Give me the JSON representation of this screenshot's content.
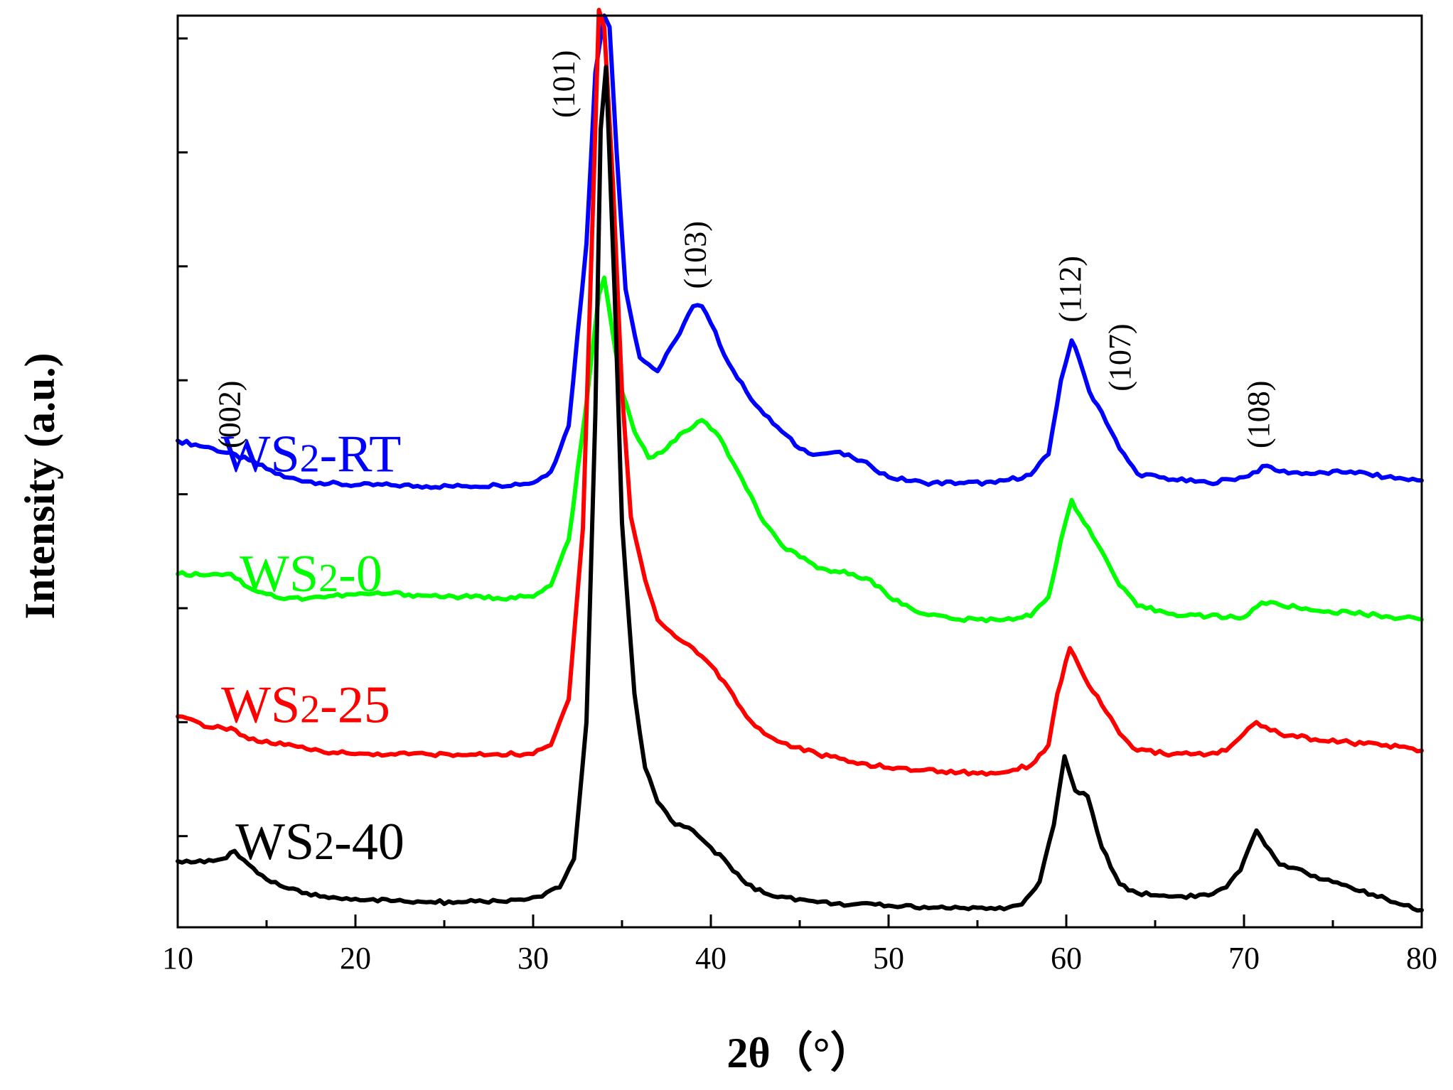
{
  "chart_data": {
    "type": "line",
    "xlabel": "2θ（°）",
    "ylabel": "Intensity (a.u.)",
    "xlim": [
      10,
      80
    ],
    "ylim": [
      0,
      8
    ],
    "xticks": [
      10,
      20,
      30,
      40,
      50,
      60,
      70,
      80
    ],
    "xtick_labels": [
      "10",
      "20",
      "30",
      "40",
      "50",
      "60",
      "70",
      "80"
    ],
    "yticks_unlabeled": [
      0.8,
      1.8,
      2.8,
      3.8,
      4.8,
      5.8,
      6.8,
      7.8
    ],
    "peak_labels": [
      {
        "text": "(002)",
        "x": 13.5,
        "y": 4.5
      },
      {
        "text": "(101)",
        "x": 32.3,
        "y": 7.4
      },
      {
        "text": "(103)",
        "x": 39.7,
        "y": 5.9
      },
      {
        "text": "(112)",
        "x": 60.8,
        "y": 5.6
      },
      {
        "text": "(107)",
        "x": 63.6,
        "y": 5.0
      },
      {
        "text": "(108)",
        "x": 71.4,
        "y": 4.5
      }
    ],
    "series": [
      {
        "name": "WS2-RT",
        "label_base": "WS",
        "label_sub": "2",
        "label_suffix": "-RT",
        "label_pos": [
          17.5,
          4.0
        ],
        "color": "#0000ff",
        "x": [
          10,
          12,
          14,
          16,
          18,
          20,
          22,
          24,
          26,
          28,
          30,
          31,
          32,
          33,
          33.5,
          34.0,
          34.3,
          34.7,
          35.2,
          36,
          37,
          38,
          39,
          39.5,
          40,
          41,
          42,
          43,
          44,
          45,
          46,
          47,
          48,
          49,
          50,
          52,
          54,
          56,
          58,
          59,
          59.7,
          60.3,
          60.7,
          61.3,
          62,
          63,
          64,
          66,
          68,
          70,
          71.3,
          72,
          74,
          76,
          78,
          80
        ],
        "y": [
          4.27,
          4.2,
          4.1,
          3.95,
          3.9,
          3.88,
          3.88,
          3.87,
          3.87,
          3.88,
          3.9,
          4.0,
          4.4,
          6.0,
          7.5,
          8.0,
          7.9,
          6.8,
          5.6,
          5.0,
          4.88,
          5.15,
          5.45,
          5.45,
          5.3,
          4.95,
          4.7,
          4.5,
          4.35,
          4.2,
          4.15,
          4.17,
          4.12,
          4.05,
          3.95,
          3.9,
          3.9,
          3.9,
          3.97,
          4.15,
          4.8,
          5.15,
          5.0,
          4.7,
          4.52,
          4.2,
          3.98,
          3.93,
          3.9,
          3.95,
          4.05,
          4.0,
          3.98,
          4.0,
          3.95,
          3.92
        ]
      },
      {
        "name": "WS2-0",
        "label_base": "WS",
        "label_sub": "2",
        "label_suffix": "-0",
        "label_pos": [
          17.5,
          2.95
        ],
        "color": "#00ff00",
        "x": [
          10,
          12,
          13,
          14,
          16,
          18,
          20,
          22,
          24,
          26,
          28,
          30,
          31,
          32,
          33,
          33.7,
          34.0,
          34.3,
          35,
          35.7,
          36.5,
          37.5,
          38.5,
          39.5,
          40.5,
          42,
          43,
          44,
          45,
          46,
          48,
          49,
          50,
          52,
          54,
          56,
          58,
          59,
          59.7,
          60.3,
          61,
          62,
          63,
          64,
          66,
          68,
          70,
          71,
          72,
          74,
          76,
          78,
          80
        ],
        "y": [
          3.1,
          3.1,
          3.1,
          2.98,
          2.88,
          2.9,
          2.92,
          2.93,
          2.91,
          2.9,
          2.89,
          2.9,
          3.0,
          3.4,
          4.6,
          5.55,
          5.7,
          5.4,
          4.7,
          4.35,
          4.12,
          4.2,
          4.35,
          4.45,
          4.3,
          3.85,
          3.55,
          3.35,
          3.25,
          3.15,
          3.1,
          3.05,
          2.9,
          2.75,
          2.7,
          2.7,
          2.73,
          2.9,
          3.4,
          3.75,
          3.55,
          3.3,
          3.0,
          2.82,
          2.75,
          2.73,
          2.72,
          2.85,
          2.83,
          2.78,
          2.76,
          2.73,
          2.7
        ]
      },
      {
        "name": "WS2-25",
        "label_base": "WS",
        "label_sub": "2",
        "label_suffix": "-25",
        "label_pos": [
          17.2,
          1.8
        ],
        "color": "#ff0000",
        "x": [
          10,
          12,
          13,
          14,
          16,
          18,
          20,
          22,
          24,
          26,
          28,
          30,
          31,
          32,
          32.8,
          33.3,
          33.7,
          34.0,
          34.5,
          35,
          35.5,
          36.3,
          37,
          38,
          39,
          40,
          41,
          42,
          43,
          44,
          46,
          48,
          50,
          52,
          54,
          56,
          58,
          59,
          59.5,
          60.2,
          61,
          62,
          63,
          64,
          66,
          68,
          69,
          70,
          70.7,
          72,
          74,
          76,
          78,
          80
        ],
        "y": [
          1.85,
          1.75,
          1.75,
          1.65,
          1.6,
          1.55,
          1.52,
          1.52,
          1.52,
          1.51,
          1.52,
          1.52,
          1.6,
          2.0,
          3.5,
          6.0,
          8.05,
          7.9,
          6.5,
          4.7,
          3.6,
          3.05,
          2.7,
          2.55,
          2.45,
          2.3,
          2.1,
          1.85,
          1.7,
          1.62,
          1.52,
          1.45,
          1.4,
          1.38,
          1.36,
          1.35,
          1.42,
          1.6,
          2.05,
          2.45,
          2.2,
          1.95,
          1.7,
          1.55,
          1.52,
          1.52,
          1.55,
          1.7,
          1.8,
          1.7,
          1.65,
          1.62,
          1.6,
          1.55
        ]
      },
      {
        "name": "WS2-40",
        "label_base": "WS",
        "label_sub": "2",
        "label_suffix": "-40",
        "label_pos": [
          18.0,
          0.6
        ],
        "color": "#000000",
        "x": [
          10,
          11.5,
          12.5,
          13.2,
          14,
          15,
          16,
          17,
          18,
          20,
          22,
          24,
          26,
          28,
          29.5,
          30.5,
          31.5,
          32.3,
          33,
          33.5,
          33.8,
          34.1,
          34.6,
          35,
          35.7,
          36.3,
          37,
          38,
          39,
          40,
          41,
          42,
          43,
          44,
          46,
          48,
          50,
          52,
          54,
          56,
          57.5,
          58.5,
          59.3,
          59.9,
          60.5,
          61.2,
          62,
          63,
          64,
          66,
          68,
          69,
          69.8,
          70.7,
          71.2,
          72,
          74,
          76,
          78,
          80
        ],
        "y": [
          0.58,
          0.57,
          0.6,
          0.67,
          0.55,
          0.42,
          0.35,
          0.3,
          0.27,
          0.25,
          0.23,
          0.22,
          0.22,
          0.23,
          0.24,
          0.27,
          0.35,
          0.6,
          1.8,
          4.5,
          7.0,
          7.55,
          5.5,
          3.55,
          2.05,
          1.4,
          1.1,
          0.9,
          0.85,
          0.7,
          0.55,
          0.38,
          0.3,
          0.27,
          0.22,
          0.2,
          0.19,
          0.18,
          0.17,
          0.16,
          0.2,
          0.4,
          0.9,
          1.5,
          1.2,
          1.15,
          0.7,
          0.38,
          0.3,
          0.27,
          0.28,
          0.35,
          0.5,
          0.85,
          0.72,
          0.55,
          0.45,
          0.35,
          0.25,
          0.15
        ]
      }
    ]
  }
}
